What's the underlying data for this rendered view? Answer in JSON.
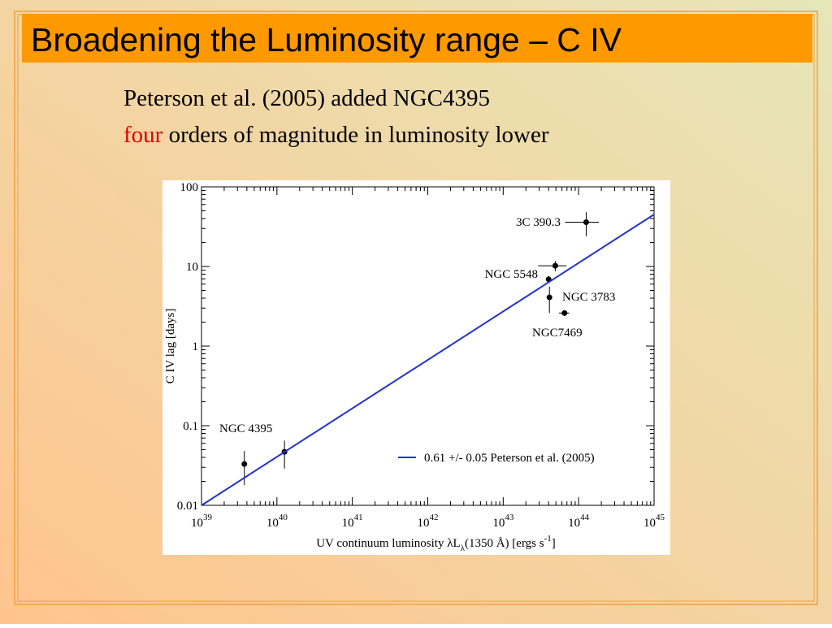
{
  "slide": {
    "title": "Broadening the Luminosity range – C IV",
    "line1": "Peterson et al. (2005)  added NGC4395",
    "line2_highlight": "four",
    "line2_rest": " orders of magnitude in luminosity lower"
  },
  "chart_data": {
    "type": "scatter",
    "xscale": "log",
    "yscale": "log",
    "xlim": [
      1e+39,
      1e+45
    ],
    "ylim": [
      0.01,
      100
    ],
    "xticks": [
      {
        "value": 1e+39,
        "label": "10",
        "superscript": "39"
      },
      {
        "value": 1e+40,
        "label": "10",
        "superscript": "40"
      },
      {
        "value": 1e+41,
        "label": "10",
        "superscript": "41"
      },
      {
        "value": 1e+42,
        "label": "10",
        "superscript": "42"
      },
      {
        "value": 1e+43,
        "label": "10",
        "superscript": "43"
      },
      {
        "value": 1e+44,
        "label": "10",
        "superscript": "44"
      },
      {
        "value": 1e+45,
        "label": "10",
        "superscript": "45"
      }
    ],
    "yticks": [
      0.01,
      0.1,
      1,
      10,
      100
    ],
    "xlabel": [
      "UV continuum luminosity λL",
      "λ",
      "(1350 Å)  [ergs s",
      "-1",
      "]"
    ],
    "ylabel": "C IV lag [days]",
    "grid": false,
    "legend": "lower right",
    "series": [
      {
        "color": "#000000",
        "x": [
          3.7e+39,
          1.26e+40,
          4.9e+43,
          4e+43,
          4.1e+43,
          6.5e+43,
          1.26e+44
        ],
        "values": [
          0.033,
          0.047,
          10.2,
          6.9,
          4.1,
          2.6,
          36
        ],
        "xerr": [
          null,
          null,
          2e+43,
          null,
          null,
          1e+43,
          6e+43
        ],
        "yerr": [
          0.015,
          0.018,
          1.5,
          0.7,
          1.5,
          0.2,
          12
        ]
      },
      {
        "name": "0.61 +/- 0.05 Peterson et al. (2005)",
        "color": "#2233cc",
        "x": [
          1e+39,
          1e+45
        ],
        "values": [
          0.01,
          45
        ]
      }
    ],
    "annotations": [
      "NGC 4395",
      "3C 390.3",
      "NGC 5548",
      "NGC 3783",
      "NGC7469"
    ]
  }
}
